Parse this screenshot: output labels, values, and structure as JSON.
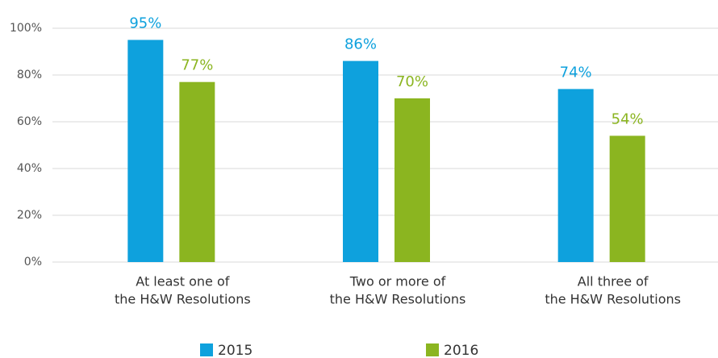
{
  "chart_data": {
    "type": "bar",
    "categories": [
      [
        "At least one of",
        "the H&W Resolutions"
      ],
      [
        "Two or more of",
        "the H&W Resolutions"
      ],
      [
        "All three of",
        "the H&W Resolutions"
      ]
    ],
    "series": [
      {
        "name": "2015",
        "color": "#0ea1dd",
        "values": [
          95,
          86,
          74
        ],
        "value_labels": [
          "95%",
          "86%",
          "74%"
        ]
      },
      {
        "name": "2016",
        "color": "#8bb520",
        "values": [
          77,
          70,
          54
        ],
        "value_labels": [
          "77%",
          "70%",
          "54%"
        ]
      }
    ],
    "ylim": [
      0,
      100
    ],
    "yticks": [
      {
        "value": 0,
        "label": "0%"
      },
      {
        "value": 20,
        "label": "20%"
      },
      {
        "value": 40,
        "label": "40%"
      },
      {
        "value": 60,
        "label": "60%"
      },
      {
        "value": 80,
        "label": "80%"
      },
      {
        "value": 100,
        "label": "100%"
      }
    ],
    "grid": true,
    "legend": "bottom"
  }
}
